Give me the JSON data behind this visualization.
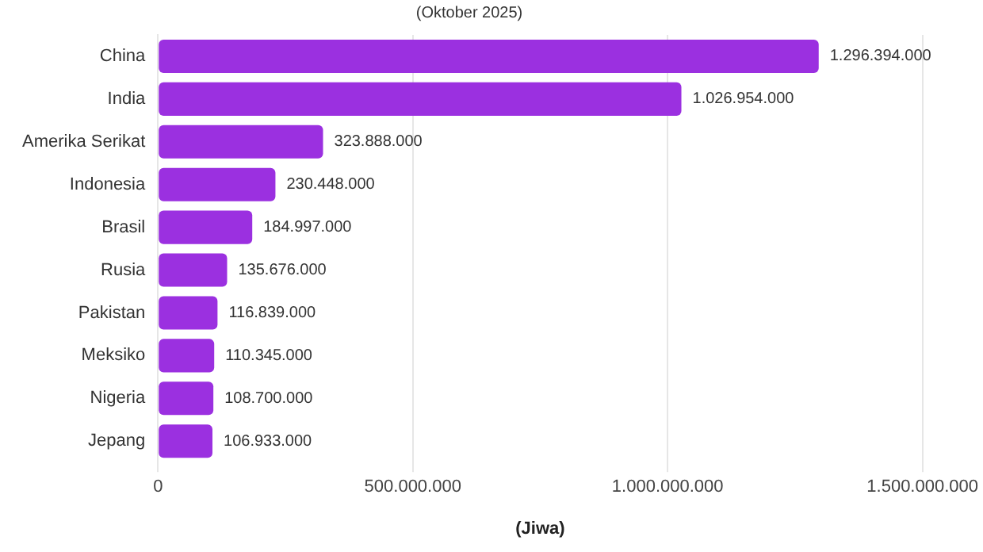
{
  "chart_data": {
    "type": "bar",
    "orientation": "horizontal",
    "subtitle": "(Oktober 2025)",
    "xlabel": "(Jiwa)",
    "categories": [
      "China",
      "India",
      "Amerika Serikat",
      "Indonesia",
      "Brasil",
      "Rusia",
      "Pakistan",
      "Meksiko",
      "Nigeria",
      "Jepang"
    ],
    "values": [
      1296394000,
      1026954000,
      323888000,
      230448000,
      184997000,
      135676000,
      116839000,
      110345000,
      108700000,
      106933000
    ],
    "value_labels": [
      "1.296.394.000",
      "1.026.954.000",
      "323.888.000",
      "230.448.000",
      "184.997.000",
      "135.676.000",
      "116.839.000",
      "110.345.000",
      "108.700.000",
      "106.933.000"
    ],
    "color": "#9b30e0",
    "xlim": [
      0,
      1500000000
    ],
    "xticks": [
      {
        "value": 0,
        "label": "0"
      },
      {
        "value": 500000000,
        "label": "500.000.000"
      },
      {
        "value": 1000000000,
        "label": "1.000.000.000"
      },
      {
        "value": 1500000000,
        "label": "1.500.000.000"
      }
    ],
    "grid": "x",
    "legend": false
  }
}
